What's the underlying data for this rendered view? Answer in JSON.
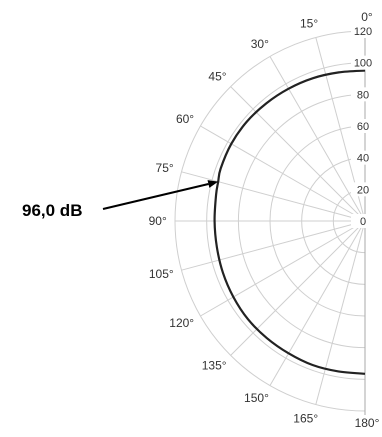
{
  "chart_data": {
    "type": "polar-line",
    "title": "",
    "units": "dB",
    "orientation": "0° top, 180° bottom, left half shown",
    "radial_range": [
      0,
      120
    ],
    "radial_tick_step": 20,
    "radial_ticks": [
      "0",
      "20",
      "40",
      "60",
      "80",
      "100",
      "120"
    ],
    "angle_ticks": [
      {
        "deg": 0,
        "label": "0°"
      },
      {
        "deg": 15,
        "label": "15°"
      },
      {
        "deg": 30,
        "label": "30°"
      },
      {
        "deg": 45,
        "label": "45°"
      },
      {
        "deg": 60,
        "label": "60°"
      },
      {
        "deg": 75,
        "label": "75°"
      },
      {
        "deg": 90,
        "label": "90°"
      },
      {
        "deg": 105,
        "label": "105°"
      },
      {
        "deg": 120,
        "label": "120°"
      },
      {
        "deg": 135,
        "label": "135°"
      },
      {
        "deg": 150,
        "label": "150°"
      },
      {
        "deg": 165,
        "label": "165°"
      },
      {
        "deg": 180,
        "label": "180°"
      }
    ],
    "grid": true,
    "series": [
      {
        "color": "#222222",
        "points": [
          {
            "angle": 0,
            "value": 95
          },
          {
            "angle": 10,
            "value": 95.3
          },
          {
            "angle": 20,
            "value": 96
          },
          {
            "angle": 30,
            "value": 96.5
          },
          {
            "angle": 40,
            "value": 97
          },
          {
            "angle": 50,
            "value": 97.5
          },
          {
            "angle": 60,
            "value": 97.5
          },
          {
            "angle": 70,
            "value": 97
          },
          {
            "angle": 75,
            "value": 96
          },
          {
            "angle": 80,
            "value": 95.5
          },
          {
            "angle": 90,
            "value": 95
          },
          {
            "angle": 100,
            "value": 95
          },
          {
            "angle": 110,
            "value": 95.5
          },
          {
            "angle": 120,
            "value": 96
          },
          {
            "angle": 130,
            "value": 96.5
          },
          {
            "angle": 140,
            "value": 96.5
          },
          {
            "angle": 150,
            "value": 96.5
          },
          {
            "angle": 160,
            "value": 96.8
          },
          {
            "angle": 170,
            "value": 96.5
          },
          {
            "angle": 180,
            "value": 96.5
          }
        ]
      }
    ],
    "annotation": {
      "text": "96,0 dB",
      "angle": 75,
      "value": 96
    }
  }
}
